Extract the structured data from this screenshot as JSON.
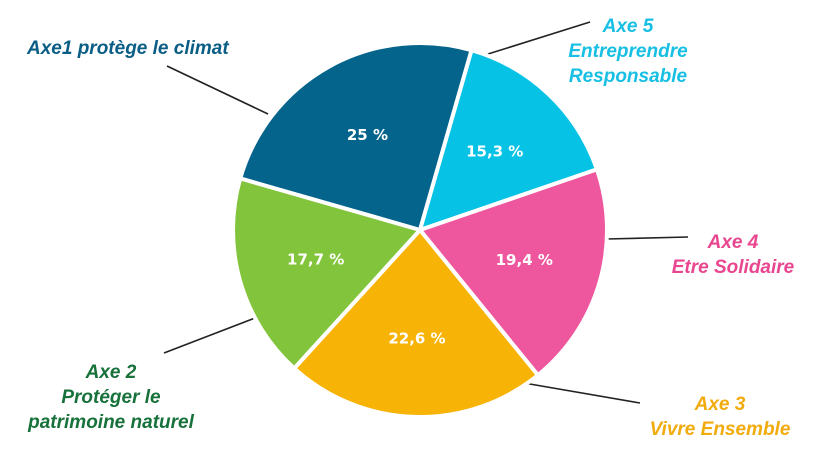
{
  "chart_data": {
    "type": "pie",
    "slices": [
      {
        "name": "Axe1 protège le climat",
        "label_lines": [
          "Axe1 protège le climat"
        ],
        "value": 25,
        "value_label": "25 %",
        "color": "#05648c",
        "label_color": "#0a5d85"
      },
      {
        "name": "Axe 5 Entreprendre Responsable",
        "label_lines": [
          "Axe 5",
          "Entreprendre",
          "Responsable"
        ],
        "value": 15.3,
        "value_label": "15,3 %",
        "color": "#06c3e6",
        "label_color": "#16bfe3"
      },
      {
        "name": "Axe 4 Etre Solidaire",
        "label_lines": [
          "Axe 4",
          "Etre Solidaire"
        ],
        "value": 19.4,
        "value_label": "19,4 %",
        "color": "#ee569d",
        "label_color": "#e8478f"
      },
      {
        "name": "Axe 3 Vivre Ensemble",
        "label_lines": [
          "Axe 3",
          "Vivre Ensemble"
        ],
        "value": 22.6,
        "value_label": "22,6 %",
        "color": "#f7b306",
        "label_color": "#f1ab0c"
      },
      {
        "name": "Axe 2 Protéger le patrimoine naturel",
        "label_lines": [
          "Axe 2",
          "Protéger le",
          "patrimoine naturel"
        ],
        "value": 17.7,
        "value_label": "17,7 %",
        "color": "#82c43c",
        "label_color": "#17713a"
      }
    ]
  }
}
